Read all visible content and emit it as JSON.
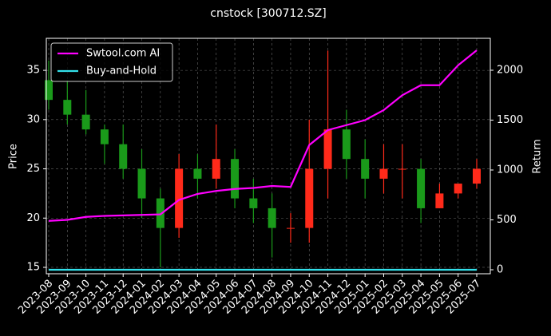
{
  "chart_data": {
    "type": "candlestick",
    "title": "cnstock [300712.SZ]",
    "y_label": "Price",
    "y2_label": "Return",
    "x": [
      "2023-08",
      "2023-09",
      "2023-10",
      "2023-11",
      "2023-12",
      "2024-01",
      "2024-02",
      "2024-03",
      "2024-04",
      "2024-05",
      "2024-06",
      "2024-07",
      "2024-08",
      "2024-09",
      "2024-10",
      "2024-11",
      "2024-12",
      "2025-01",
      "2025-02",
      "2025-03",
      "2025-04",
      "2025-05",
      "2025-06",
      "2025-07"
    ],
    "open": [
      34,
      32,
      30.5,
      29,
      27.5,
      25,
      22,
      19,
      25,
      24,
      26,
      22,
      21,
      19,
      19,
      25,
      29,
      26,
      24,
      25,
      25,
      21,
      22.5,
      23.5
    ],
    "high": [
      36,
      34,
      33,
      29.5,
      29.5,
      27,
      23,
      26.5,
      26.5,
      29.5,
      27,
      24,
      22.5,
      20.5,
      30,
      37,
      31,
      28,
      27.5,
      27.5,
      26,
      23.5,
      23.5,
      26
    ],
    "low": [
      31,
      29.5,
      28.5,
      25.5,
      24,
      20,
      15,
      18,
      22,
      23,
      21,
      19.5,
      16,
      17.5,
      17.5,
      22,
      24,
      22,
      22.5,
      22,
      19.5,
      21,
      22,
      23
    ],
    "close": [
      32,
      30.5,
      29,
      27.5,
      25,
      22,
      19,
      25,
      24,
      26,
      22,
      21,
      19,
      19,
      25,
      29,
      26,
      24,
      25,
      25,
      21,
      22.5,
      23.5,
      25
    ],
    "up_color": "#ff2a1a",
    "down_color": "#1a9a1a",
    "series": [
      {
        "name": "Swtool.com AI",
        "color": "#ff00ff",
        "axis": "y2",
        "values": [
          490,
          500,
          530,
          540,
          545,
          550,
          555,
          700,
          760,
          790,
          810,
          820,
          840,
          830,
          1250,
          1400,
          1450,
          1500,
          1600,
          1750,
          1850,
          1850,
          2050,
          2200
        ]
      },
      {
        "name": "Buy-and-Hold",
        "color": "#33e0ea",
        "axis": "y2",
        "values": [
          0,
          0,
          0,
          0,
          0,
          0,
          0,
          0,
          0,
          0,
          0,
          0,
          0,
          0,
          0,
          0,
          0,
          0,
          0,
          0,
          0,
          0,
          0,
          0
        ]
      }
    ],
    "ylim": [
      14.35,
      38.25
    ],
    "yticks": [
      15,
      20,
      25,
      30,
      35
    ],
    "y2lim": [
      -40,
      2320
    ],
    "y2ticks": [
      0,
      500,
      1000,
      1500,
      2000
    ],
    "grid": true,
    "legend": "upper-left"
  }
}
